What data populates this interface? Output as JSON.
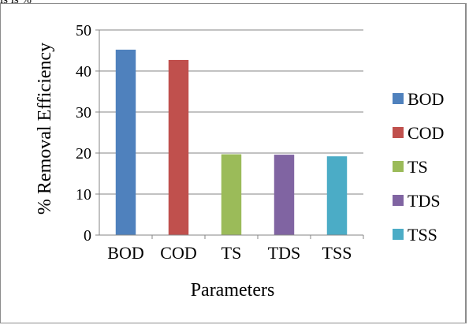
{
  "page": {
    "top_fragment": "ls is %"
  },
  "chart_data": {
    "type": "bar",
    "title": "",
    "xlabel": "Parameters",
    "ylabel": "% Removal Efficiency",
    "categories": [
      "BOD",
      "COD",
      "TS",
      "TDS",
      "TSS"
    ],
    "values": [
      45.2,
      42.7,
      19.7,
      19.6,
      19.2
    ],
    "colors": [
      "#4f81bd",
      "#c0504d",
      "#9bbb59",
      "#8064a2",
      "#4bacc6"
    ],
    "ylim": [
      0,
      50
    ],
    "yticks": [
      "0",
      "10",
      "20",
      "30",
      "40",
      "50"
    ],
    "grid": true,
    "legend_position": "right",
    "legend": [
      "BOD",
      "COD",
      "TS",
      "TDS",
      "TSS"
    ]
  }
}
